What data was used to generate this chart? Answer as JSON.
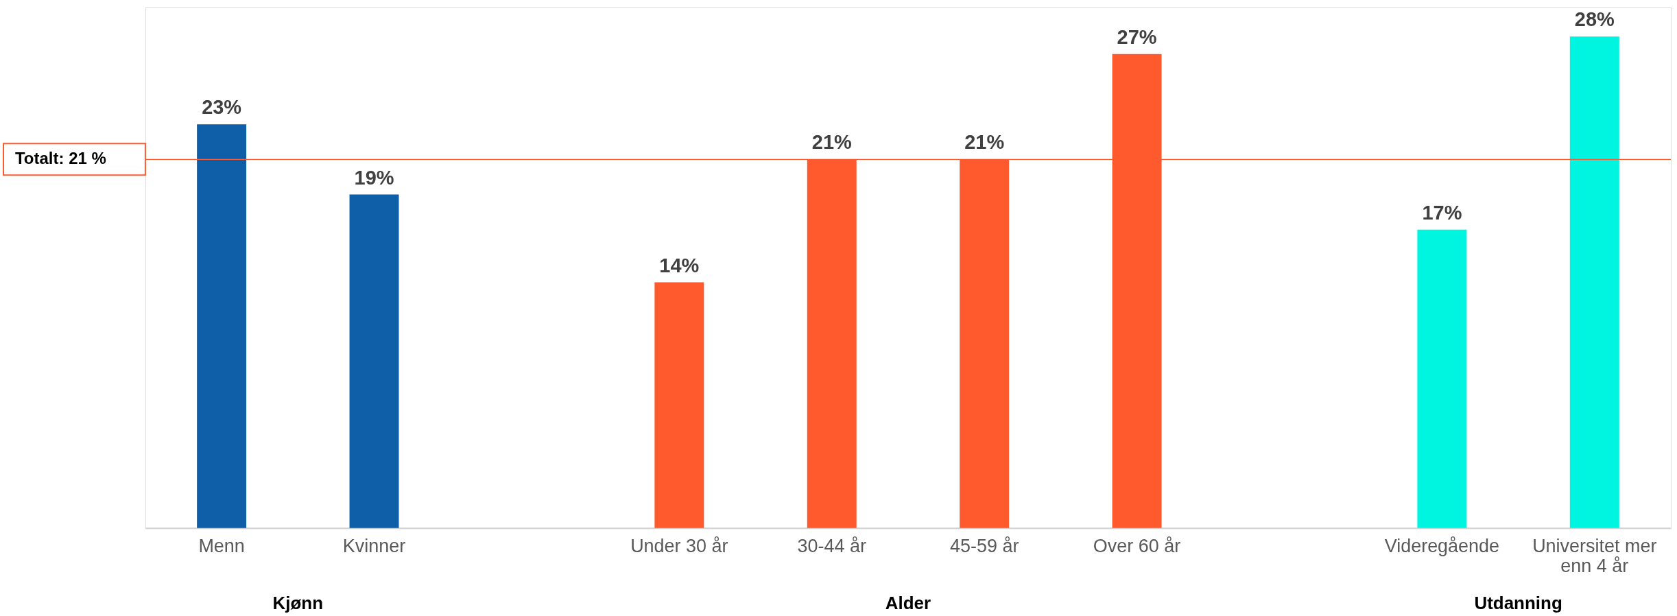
{
  "chart_data": {
    "type": "bar",
    "categories": [
      "Menn",
      "Kvinner",
      null,
      "Under 30 år",
      "30-44 år",
      "45-59 år",
      "Over 60 år",
      null,
      "Videregående",
      "Universitet mer enn 4 år"
    ],
    "values": [
      23,
      19,
      null,
      14,
      21,
      21,
      27,
      null,
      17,
      28
    ],
    "value_labels": [
      "23%",
      "19%",
      null,
      "14%",
      "21%",
      "21%",
      "27%",
      null,
      "17%",
      "28%"
    ],
    "colors": [
      "#0e5ea8",
      "#0e5ea8",
      null,
      "#ff5a2e",
      "#ff5a2e",
      "#ff5a2e",
      "#ff5a2e",
      null,
      "#00f5e0",
      "#00f5e0"
    ],
    "ref_lines": [
      {
        "axis": "y",
        "value": 21,
        "label": "Totalt: 21 %",
        "color": "#ff5a2e"
      }
    ],
    "annotations": [
      "Kjønn",
      "Alder",
      "Utdanning"
    ],
    "grid": false
  }
}
